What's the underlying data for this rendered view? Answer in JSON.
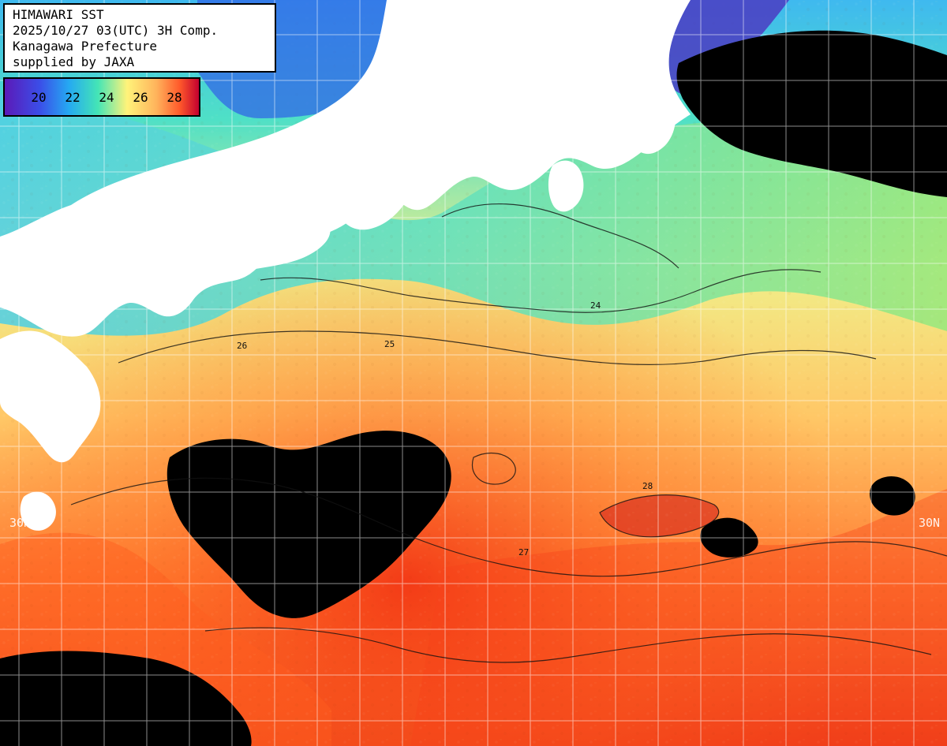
{
  "title": {
    "line1": "HIMAWARI SST",
    "line2": "2025/10/27 03(UTC) 3H Comp.",
    "line3": "Kanagawa Prefecture",
    "line4": "supplied by JAXA"
  },
  "legend": {
    "ticks": [
      "20",
      "22",
      "24",
      "26",
      "28"
    ]
  },
  "grid": {
    "lat_label_left": "30N",
    "lat_label_right": "30N"
  },
  "contour_labels": [
    "24",
    "25",
    "26",
    "27",
    "28"
  ],
  "colors": {
    "land": "#ffffff",
    "cloud_mask": "#000000",
    "sst_20": "#5b1ab8",
    "sst_22": "#25a9f2",
    "sst_24": "#44e5b6",
    "sst_26": "#fff37a",
    "sst_28": "#ff5a2b",
    "sst_max": "#c4002f"
  }
}
